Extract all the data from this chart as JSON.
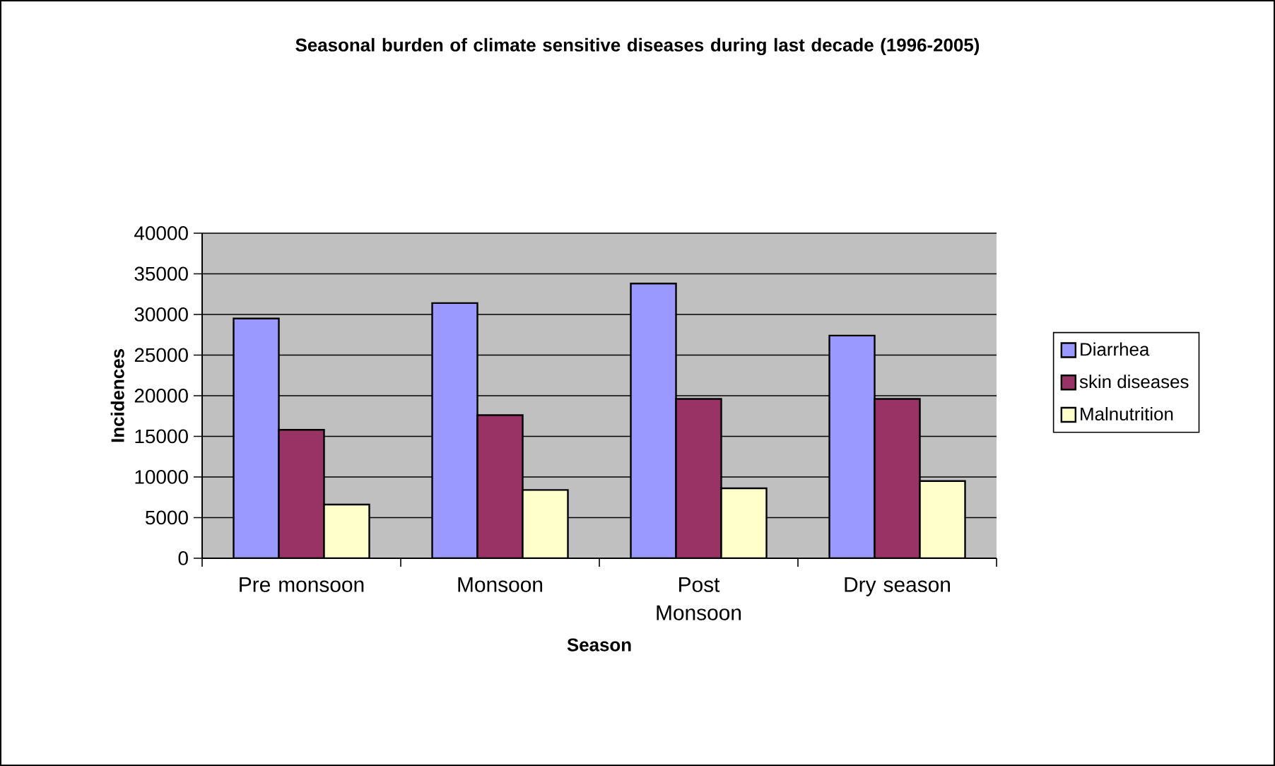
{
  "chart_data": {
    "type": "bar",
    "title": "Seasonal burden of climate sensitive diseases during last decade (1996-2005)",
    "xlabel": "Season",
    "ylabel": "Incidences",
    "categories": [
      "Pre monsoon",
      "Monsoon",
      "Post Monsoon",
      "Dry season"
    ],
    "series": [
      {
        "name": "Diarrhea",
        "color": "#9999ff",
        "values": [
          29500,
          31400,
          33800,
          27400
        ]
      },
      {
        "name": "skin diseases",
        "color": "#993366",
        "values": [
          15800,
          17600,
          19600,
          19600
        ]
      },
      {
        "name": "Malnutrition",
        "color": "#ffffcc",
        "values": [
          6600,
          8400,
          8600,
          9500
        ]
      }
    ],
    "ylim": [
      0,
      40000
    ],
    "yticks": [
      0,
      5000,
      10000,
      15000,
      20000,
      25000,
      30000,
      35000,
      40000
    ],
    "grid": "y",
    "legend": "right"
  }
}
